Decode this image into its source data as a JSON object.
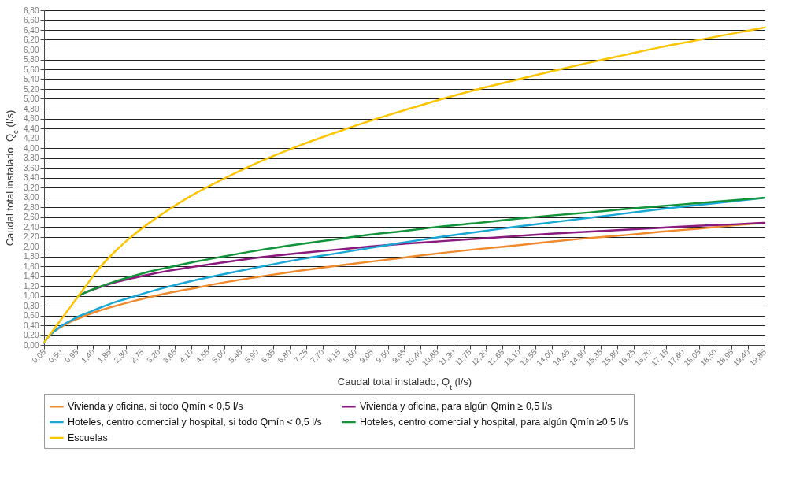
{
  "chart_data": {
    "type": "line",
    "xlabel": "Caudal total instalado, Q$_{t}$ (l/s)",
    "ylabel": "Caudal total instalado, Q$_{c}$ (l/s)",
    "xlim": [
      0.05,
      19.85
    ],
    "xticks": [
      {
        "value": 0.05,
        "label": "0,05"
      },
      {
        "value": 0.5,
        "label": "0,50"
      },
      {
        "value": 0.95,
        "label": "0,95"
      },
      {
        "value": 1.4,
        "label": "1,40"
      },
      {
        "value": 1.85,
        "label": "1,85"
      },
      {
        "value": 2.3,
        "label": "2,30"
      },
      {
        "value": 2.75,
        "label": "2,75"
      },
      {
        "value": 3.2,
        "label": "3,20"
      },
      {
        "value": 3.65,
        "label": "3,65"
      },
      {
        "value": 4.1,
        "label": "4,10"
      },
      {
        "value": 4.55,
        "label": "4,55"
      },
      {
        "value": 5,
        "label": "5,00"
      },
      {
        "value": 5.45,
        "label": "5,45"
      },
      {
        "value": 5.9,
        "label": "5,90"
      },
      {
        "value": 6.35,
        "label": "6,35"
      },
      {
        "value": 6.8,
        "label": "6,80"
      },
      {
        "value": 7.25,
        "label": "7,25"
      },
      {
        "value": 7.7,
        "label": "7,70"
      },
      {
        "value": 8.15,
        "label": "8,15"
      },
      {
        "value": 8.6,
        "label": "8,60"
      },
      {
        "value": 9.05,
        "label": "9,05"
      },
      {
        "value": 9.5,
        "label": "9,50"
      },
      {
        "value": 9.95,
        "label": "9,95"
      },
      {
        "value": 10.4,
        "label": "10,40"
      },
      {
        "value": 10.85,
        "label": "10,85"
      },
      {
        "value": 11.3,
        "label": "11,30"
      },
      {
        "value": 11.75,
        "label": "11,75"
      },
      {
        "value": 12.2,
        "label": "12,20"
      },
      {
        "value": 12.65,
        "label": "12,65"
      },
      {
        "value": 13.1,
        "label": "13,10"
      },
      {
        "value": 13.55,
        "label": "13,55"
      },
      {
        "value": 14,
        "label": "14,00"
      },
      {
        "value": 14.45,
        "label": "14,45"
      },
      {
        "value": 14.9,
        "label": "14,90"
      },
      {
        "value": 15.35,
        "label": "15,35"
      },
      {
        "value": 15.8,
        "label": "15,80"
      },
      {
        "value": 16.25,
        "label": "16,25"
      },
      {
        "value": 16.7,
        "label": "16,70"
      },
      {
        "value": 17.15,
        "label": "17,15"
      },
      {
        "value": 17.6,
        "label": "17,60"
      },
      {
        "value": 18.05,
        "label": "18,05"
      },
      {
        "value": 18.5,
        "label": "18,50"
      },
      {
        "value": 18.95,
        "label": "18,95"
      },
      {
        "value": 19.4,
        "label": "19,40"
      },
      {
        "value": 19.85,
        "label": "19,85"
      }
    ],
    "ylim": [
      0,
      6.8
    ],
    "yticks": [
      {
        "value": 0,
        "label": "0,00"
      },
      {
        "value": 0.2,
        "label": "0,20"
      },
      {
        "value": 0.4,
        "label": "0,40"
      },
      {
        "value": 0.6,
        "label": "0,60"
      },
      {
        "value": 0.8,
        "label": "0,80"
      },
      {
        "value": 1,
        "label": "1,00"
      },
      {
        "value": 1.2,
        "label": "1,20"
      },
      {
        "value": 1.4,
        "label": "1,40"
      },
      {
        "value": 1.6,
        "label": "1,60"
      },
      {
        "value": 1.8,
        "label": "1,80"
      },
      {
        "value": 2,
        "label": "2,00"
      },
      {
        "value": 2.2,
        "label": "2,20"
      },
      {
        "value": 2.4,
        "label": "2,40"
      },
      {
        "value": 2.6,
        "label": "2,60"
      },
      {
        "value": 2.8,
        "label": "2,80"
      },
      {
        "value": 3,
        "label": "3,00"
      },
      {
        "value": 3.2,
        "label": "3,20"
      },
      {
        "value": 3.4,
        "label": "3,40"
      },
      {
        "value": 3.6,
        "label": "3,60"
      },
      {
        "value": 3.8,
        "label": "3,80"
      },
      {
        "value": 4,
        "label": "4,00"
      },
      {
        "value": 4.2,
        "label": "4,20"
      },
      {
        "value": 4.4,
        "label": "4,40"
      },
      {
        "value": 4.6,
        "label": "4,60"
      },
      {
        "value": 4.8,
        "label": "4,80"
      },
      {
        "value": 5,
        "label": "5,00"
      },
      {
        "value": 5.2,
        "label": "5,20"
      },
      {
        "value": 5.4,
        "label": "5,40"
      },
      {
        "value": 5.6,
        "label": "5,60"
      },
      {
        "value": 5.8,
        "label": "5,80"
      },
      {
        "value": 6,
        "label": "6,00"
      },
      {
        "value": 6.2,
        "label": "6,20"
      },
      {
        "value": 6.4,
        "label": "6,40"
      },
      {
        "value": 6.6,
        "label": "6,60"
      },
      {
        "value": 6.8,
        "label": "6,80"
      }
    ],
    "grid": "y",
    "legend": "bottom",
    "x": [
      0.05,
      0.1,
      0.2,
      0.3,
      0.4,
      0.5,
      0.6,
      0.8,
      1,
      1.2,
      1.5,
      2,
      2.5,
      3,
      3.5,
      4,
      5,
      6,
      7,
      8,
      9,
      10,
      11,
      12,
      13,
      14,
      15,
      16,
      17,
      18,
      19,
      19.85
    ],
    "series": [
      {
        "name": "Vivienda y oficina, si todo Qmín < 0,5 l/s",
        "color": "#f08a2c",
        "values": [
          null,
          null,
          0.19,
          0.26,
          0.31,
          0.36,
          0.4,
          0.48,
          0.54,
          0.6,
          0.68,
          0.79,
          0.89,
          0.98,
          1.06,
          1.13,
          1.27,
          1.39,
          1.5,
          1.6,
          1.69,
          1.78,
          1.87,
          1.95,
          2.02,
          2.1,
          2.17,
          2.23,
          2.3,
          2.36,
          2.43,
          2.48
        ]
      },
      {
        "name": "Vivienda y oficina, para algún Qmín ≥ 0,5 l/s",
        "color": "#8b1a7e",
        "values": [
          null,
          null,
          null,
          null,
          null,
          null,
          null,
          null,
          1.0,
          1.07,
          1.15,
          1.27,
          1.36,
          1.44,
          1.51,
          1.57,
          1.68,
          1.78,
          1.86,
          1.93,
          2.0,
          2.06,
          2.11,
          2.16,
          2.21,
          2.26,
          2.3,
          2.34,
          2.38,
          2.42,
          2.45,
          2.48
        ]
      },
      {
        "name": "Hoteles, centro comercial y hospital, si todo Qmín < 0,5 l/s",
        "color": "#1aa7d6",
        "values": [
          0.04,
          0.1,
          0.19,
          0.26,
          0.32,
          0.37,
          0.42,
          0.5,
          0.58,
          0.64,
          0.73,
          0.87,
          0.98,
          1.09,
          1.19,
          1.28,
          1.44,
          1.59,
          1.73,
          1.85,
          1.97,
          2.09,
          2.2,
          2.3,
          2.4,
          2.49,
          2.58,
          2.67,
          2.76,
          2.84,
          2.92,
          2.99
        ]
      },
      {
        "name": "Hoteles, centro comercial y hospital, para algún Qmín ≥0,5 l/s",
        "color": "#13933a",
        "values": [
          null,
          null,
          null,
          null,
          null,
          null,
          null,
          null,
          1.0,
          1.07,
          1.16,
          1.29,
          1.4,
          1.5,
          1.58,
          1.66,
          1.8,
          1.93,
          2.04,
          2.14,
          2.24,
          2.32,
          2.41,
          2.48,
          2.56,
          2.63,
          2.69,
          2.76,
          2.82,
          2.88,
          2.94,
          2.99
        ]
      },
      {
        "name": "Escuelas",
        "color": "#fcc500",
        "values": [
          0.05,
          0.1,
          0.2,
          0.3,
          0.4,
          0.5,
          0.6,
          0.8,
          1.0,
          1.2,
          1.5,
          1.9,
          2.23,
          2.51,
          2.76,
          2.99,
          3.38,
          3.73,
          4.03,
          4.3,
          4.55,
          4.78,
          5.0,
          5.2,
          5.38,
          5.56,
          5.73,
          5.89,
          6.05,
          6.19,
          6.33,
          6.45
        ]
      }
    ]
  }
}
